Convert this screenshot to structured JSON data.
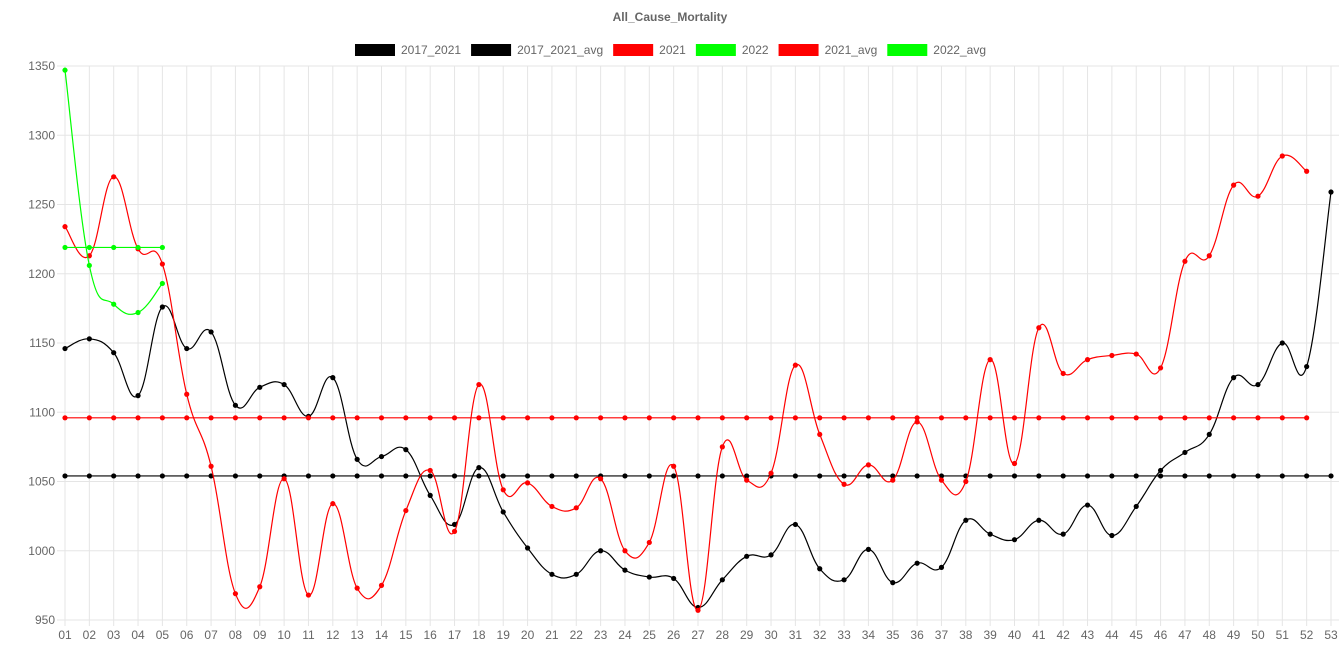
{
  "chart_data": {
    "type": "line",
    "title": "All_Cause_Mortality",
    "categories": [
      "01",
      "02",
      "03",
      "04",
      "05",
      "06",
      "07",
      "08",
      "09",
      "10",
      "11",
      "12",
      "13",
      "14",
      "15",
      "16",
      "17",
      "18",
      "19",
      "20",
      "21",
      "22",
      "23",
      "24",
      "25",
      "26",
      "27",
      "28",
      "29",
      "30",
      "31",
      "32",
      "33",
      "34",
      "35",
      "36",
      "37",
      "38",
      "39",
      "40",
      "41",
      "42",
      "43",
      "44",
      "45",
      "46",
      "47",
      "48",
      "49",
      "50",
      "51",
      "52",
      "53"
    ],
    "ylim": [
      950,
      1350
    ],
    "yticks": [
      950,
      1000,
      1050,
      1100,
      1150,
      1200,
      1250,
      1300,
      1350
    ],
    "grid": true,
    "legend_position": "top",
    "series": [
      {
        "name": "2017_2021",
        "color": "#000000",
        "values": [
          1146,
          1153,
          1143,
          1112,
          1176,
          1146,
          1158,
          1105,
          1118,
          1120,
          1097,
          1125,
          1066,
          1068,
          1073,
          1040,
          1019,
          1060,
          1028,
          1002,
          983,
          983,
          1000,
          986,
          981,
          980,
          959,
          979,
          996,
          997,
          1019,
          987,
          979,
          1001,
          977,
          991,
          988,
          1022,
          1012,
          1008,
          1022,
          1012,
          1033,
          1011,
          1032,
          1058,
          1071,
          1084,
          1125,
          1120,
          1150,
          1133,
          1259
        ]
      },
      {
        "name": "2017_2021_avg",
        "color": "#000000",
        "values": [
          1054,
          1054,
          1054,
          1054,
          1054,
          1054,
          1054,
          1054,
          1054,
          1054,
          1054,
          1054,
          1054,
          1054,
          1054,
          1054,
          1054,
          1054,
          1054,
          1054,
          1054,
          1054,
          1054,
          1054,
          1054,
          1054,
          1054,
          1054,
          1054,
          1054,
          1054,
          1054,
          1054,
          1054,
          1054,
          1054,
          1054,
          1054,
          1054,
          1054,
          1054,
          1054,
          1054,
          1054,
          1054,
          1054,
          1054,
          1054,
          1054,
          1054,
          1054,
          1054,
          1054
        ]
      },
      {
        "name": "2021",
        "color": "#ff0000",
        "values": [
          1234,
          1213,
          1270,
          1218,
          1207,
          1113,
          1061,
          969,
          974,
          1052,
          968,
          1034,
          973,
          975,
          1029,
          1058,
          1014,
          1120,
          1044,
          1049,
          1032,
          1031,
          1052,
          1000,
          1006,
          1061,
          957,
          1075,
          1051,
          1056,
          1134,
          1084,
          1048,
          1062,
          1051,
          1093,
          1051,
          1050,
          1138,
          1063,
          1161,
          1128,
          1138,
          1141,
          1142,
          1132,
          1209,
          1213,
          1264,
          1256,
          1285,
          1274,
          null
        ]
      },
      {
        "name": "2022",
        "color": "#00ff00",
        "values": [
          1347,
          1206,
          1178,
          1172,
          1193,
          null,
          null,
          null,
          null,
          null,
          null,
          null,
          null,
          null,
          null,
          null,
          null,
          null,
          null,
          null,
          null,
          null,
          null,
          null,
          null,
          null,
          null,
          null,
          null,
          null,
          null,
          null,
          null,
          null,
          null,
          null,
          null,
          null,
          null,
          null,
          null,
          null,
          null,
          null,
          null,
          null,
          null,
          null,
          null,
          null,
          null,
          null,
          null
        ]
      },
      {
        "name": "2021_avg",
        "color": "#ff0000",
        "values": [
          1096,
          1096,
          1096,
          1096,
          1096,
          1096,
          1096,
          1096,
          1096,
          1096,
          1096,
          1096,
          1096,
          1096,
          1096,
          1096,
          1096,
          1096,
          1096,
          1096,
          1096,
          1096,
          1096,
          1096,
          1096,
          1096,
          1096,
          1096,
          1096,
          1096,
          1096,
          1096,
          1096,
          1096,
          1096,
          1096,
          1096,
          1096,
          1096,
          1096,
          1096,
          1096,
          1096,
          1096,
          1096,
          1096,
          1096,
          1096,
          1096,
          1096,
          1096,
          1096,
          null
        ]
      },
      {
        "name": "2022_avg",
        "color": "#00ff00",
        "values": [
          1219,
          1219,
          1219,
          1219,
          1219,
          null,
          null,
          null,
          null,
          null,
          null,
          null,
          null,
          null,
          null,
          null,
          null,
          null,
          null,
          null,
          null,
          null,
          null,
          null,
          null,
          null,
          null,
          null,
          null,
          null,
          null,
          null,
          null,
          null,
          null,
          null,
          null,
          null,
          null,
          null,
          null,
          null,
          null,
          null,
          null,
          null,
          null,
          null,
          null,
          null,
          null,
          null,
          null
        ]
      }
    ]
  }
}
